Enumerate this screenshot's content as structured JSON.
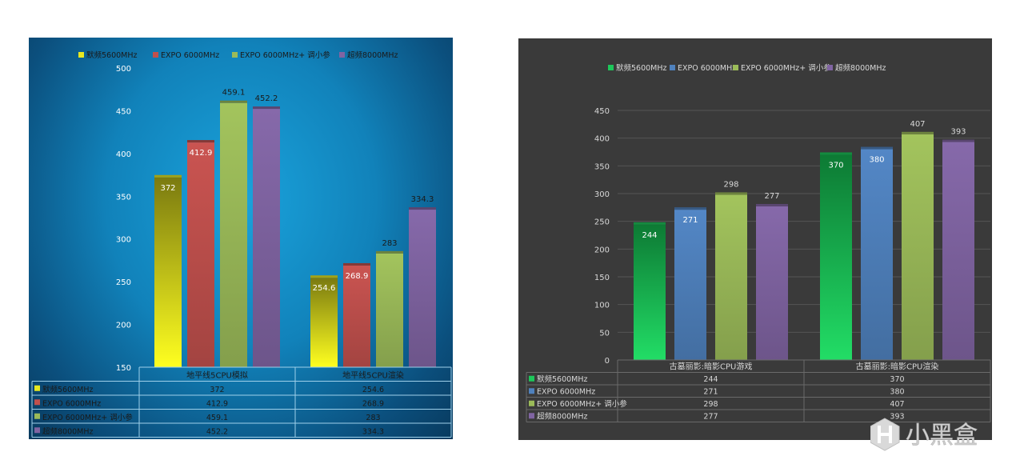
{
  "charts": [
    {
      "type": "bar",
      "categories": [
        "地平线5CPU模拟",
        "地平线5CPU渲染"
      ],
      "series": [
        {
          "name": "默频5600MHz",
          "values": [
            372,
            254.6
          ],
          "color": "#e8e820"
        },
        {
          "name": "EXPO 6000MHz",
          "values": [
            412.9,
            268.9
          ],
          "color": "#c0504d"
        },
        {
          "name": "EXPO 6000MHz+ 调小参",
          "values": [
            459.1,
            283
          ],
          "color": "#9bbb59"
        },
        {
          "name": "超频8000MHz",
          "values": [
            452.2,
            334.3
          ],
          "color": "#8064a2"
        }
      ],
      "value_labels": [
        [
          "372",
          "254.6"
        ],
        [
          "412.9",
          "268.9"
        ],
        [
          "459.1",
          "283"
        ],
        [
          "452.2",
          "334.3"
        ]
      ],
      "ylim": [
        150,
        500
      ],
      "yticks": [
        150,
        200,
        250,
        300,
        350,
        400,
        450,
        500
      ],
      "legend_position": "top",
      "data_table": true
    },
    {
      "type": "bar",
      "categories": [
        "古墓丽影:暗影CPU游戏",
        "古墓丽影:暗影CPU渲染"
      ],
      "series": [
        {
          "name": "默频5600MHz",
          "values": [
            244,
            370
          ],
          "color": "#1dc75a"
        },
        {
          "name": "EXPO 6000MHz",
          "values": [
            271,
            380
          ],
          "color": "#4f81bd"
        },
        {
          "name": "EXPO 6000MHz+ 调小参",
          "values": [
            298,
            407
          ],
          "color": "#9bbb59"
        },
        {
          "name": "超频8000MHz",
          "values": [
            277,
            393
          ],
          "color": "#8064a2"
        }
      ],
      "value_labels": [
        [
          "244",
          "370"
        ],
        [
          "271",
          "380"
        ],
        [
          "298",
          "407"
        ],
        [
          "277",
          "393"
        ]
      ],
      "ylim": [
        0,
        450
      ],
      "yticks": [
        0,
        50,
        100,
        150,
        200,
        250,
        300,
        350,
        400,
        450
      ],
      "legend_position": "top",
      "data_table": true
    }
  ],
  "watermark": {
    "text": "小黑盒",
    "icon": "heybox-logo-icon"
  }
}
